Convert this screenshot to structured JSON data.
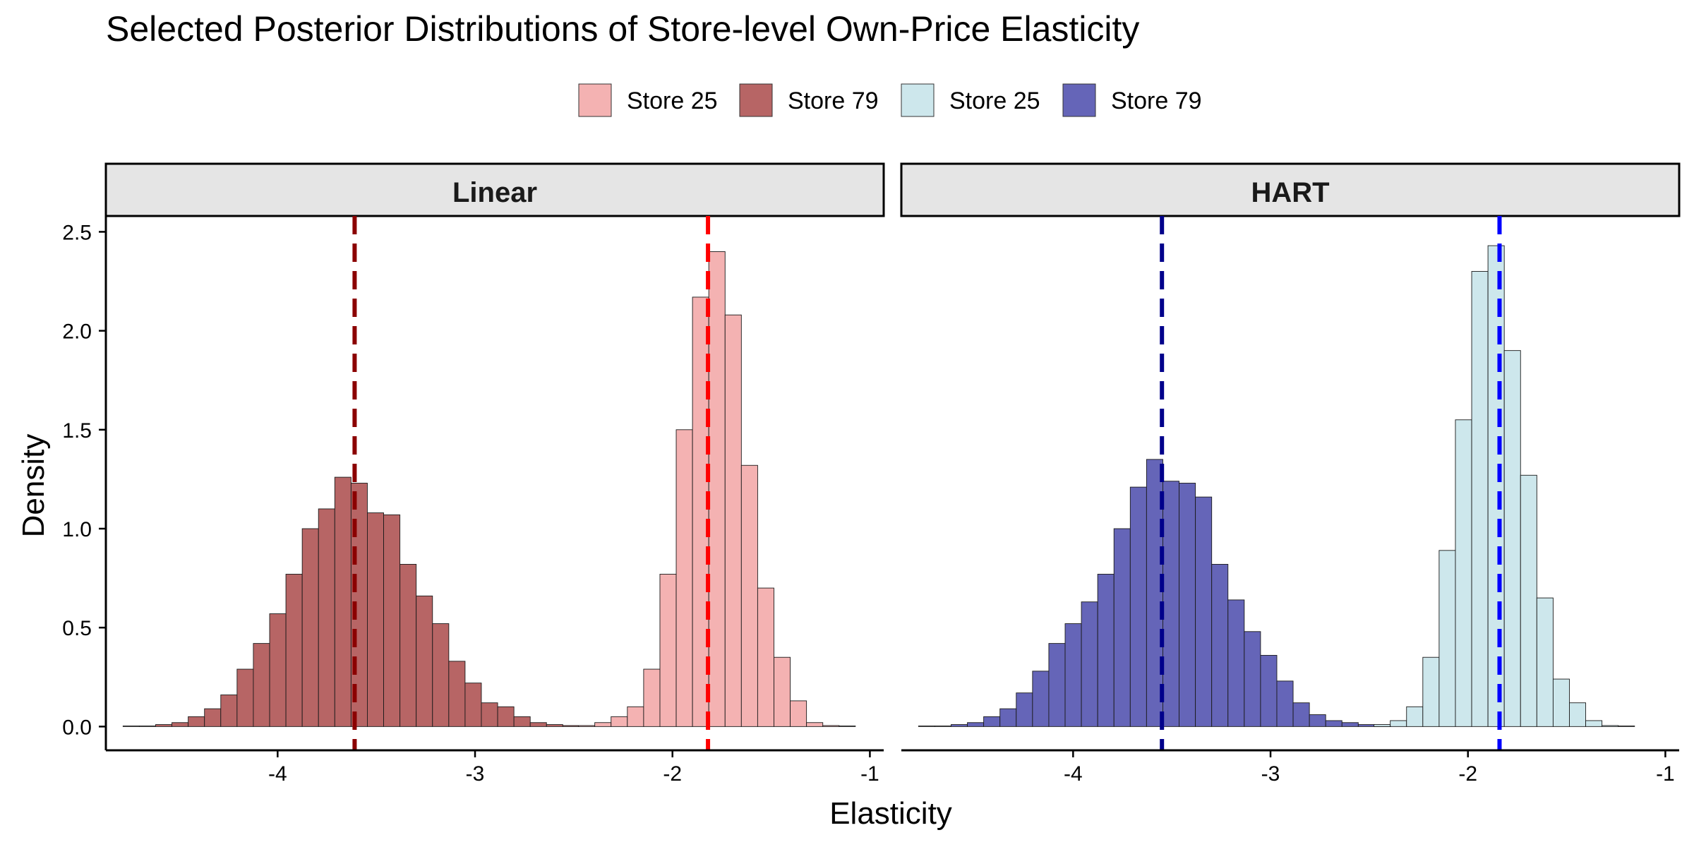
{
  "chart_data": {
    "type": "bar",
    "title": "Selected Posterior Distributions of Store-level Own-Price Elasticity",
    "xlabel": "Elasticity",
    "ylabel": "Density",
    "xlim": [
      -4.87,
      -0.93
    ],
    "ylim": [
      -0.12,
      2.58
    ],
    "x_ticks": [
      -4,
      -3,
      -2,
      -1
    ],
    "x_tick_labels": [
      "-4",
      "-3",
      "-2",
      "-1"
    ],
    "y_ticks": [
      0,
      0.5,
      1,
      1.5,
      2,
      2.5
    ],
    "y_tick_labels": [
      "0.0",
      "0.5",
      "1.0",
      "1.5",
      "2.0",
      "2.5"
    ],
    "bin_width": 0.0825,
    "grid": false,
    "legend_position": "top",
    "legend": [
      {
        "label": "Store 25",
        "color": "#F4B2B2"
      },
      {
        "label": "Store 79",
        "color": "#B76565"
      },
      {
        "label": "Store 25",
        "color": "#CDE7EC"
      },
      {
        "label": "Store 79",
        "color": "#6565B8"
      }
    ],
    "panels": [
      {
        "strip": "Linear",
        "vlines": [
          {
            "x": -3.61,
            "color": "#8B0000"
          },
          {
            "x": -1.82,
            "color": "#FF0000"
          }
        ],
        "series": [
          {
            "name": "Store 79",
            "fill": "#B76565",
            "start": -4.783,
            "values": [
              0.003,
              0.003,
              0.01,
              0.02,
              0.05,
              0.09,
              0.16,
              0.29,
              0.42,
              0.57,
              0.77,
              1.0,
              1.1,
              1.26,
              1.23,
              1.08,
              1.07,
              0.82,
              0.66,
              0.52,
              0.33,
              0.22,
              0.12,
              0.1,
              0.05,
              0.02,
              0.01,
              0.005
            ]
          },
          {
            "name": "Store 25",
            "fill": "#F4B2B2",
            "start": -2.476,
            "values": [
              0.005,
              0.02,
              0.05,
              0.1,
              0.29,
              0.77,
              1.5,
              2.17,
              2.4,
              2.08,
              1.32,
              0.7,
              0.35,
              0.13,
              0.02,
              0.005,
              0.003
            ]
          }
        ]
      },
      {
        "strip": "HART",
        "vlines": [
          {
            "x": -3.55,
            "color": "#00008B"
          },
          {
            "x": -1.84,
            "color": "#0000FF"
          }
        ],
        "series": [
          {
            "name": "Store 79",
            "fill": "#6565B8",
            "start": -4.783,
            "values": [
              0.003,
              0.003,
              0.01,
              0.02,
              0.05,
              0.09,
              0.17,
              0.28,
              0.42,
              0.52,
              0.63,
              0.77,
              1.0,
              1.21,
              1.35,
              1.24,
              1.23,
              1.16,
              0.82,
              0.64,
              0.48,
              0.36,
              0.23,
              0.12,
              0.06,
              0.03,
              0.02,
              0.01,
              0.005
            ]
          },
          {
            "name": "Store 25",
            "fill": "#CDE7EC",
            "start": -2.476,
            "values": [
              0.01,
              0.03,
              0.1,
              0.35,
              0.89,
              1.55,
              2.3,
              2.43,
              1.9,
              1.27,
              0.65,
              0.24,
              0.12,
              0.03,
              0.005,
              0.003
            ]
          }
        ]
      }
    ]
  }
}
